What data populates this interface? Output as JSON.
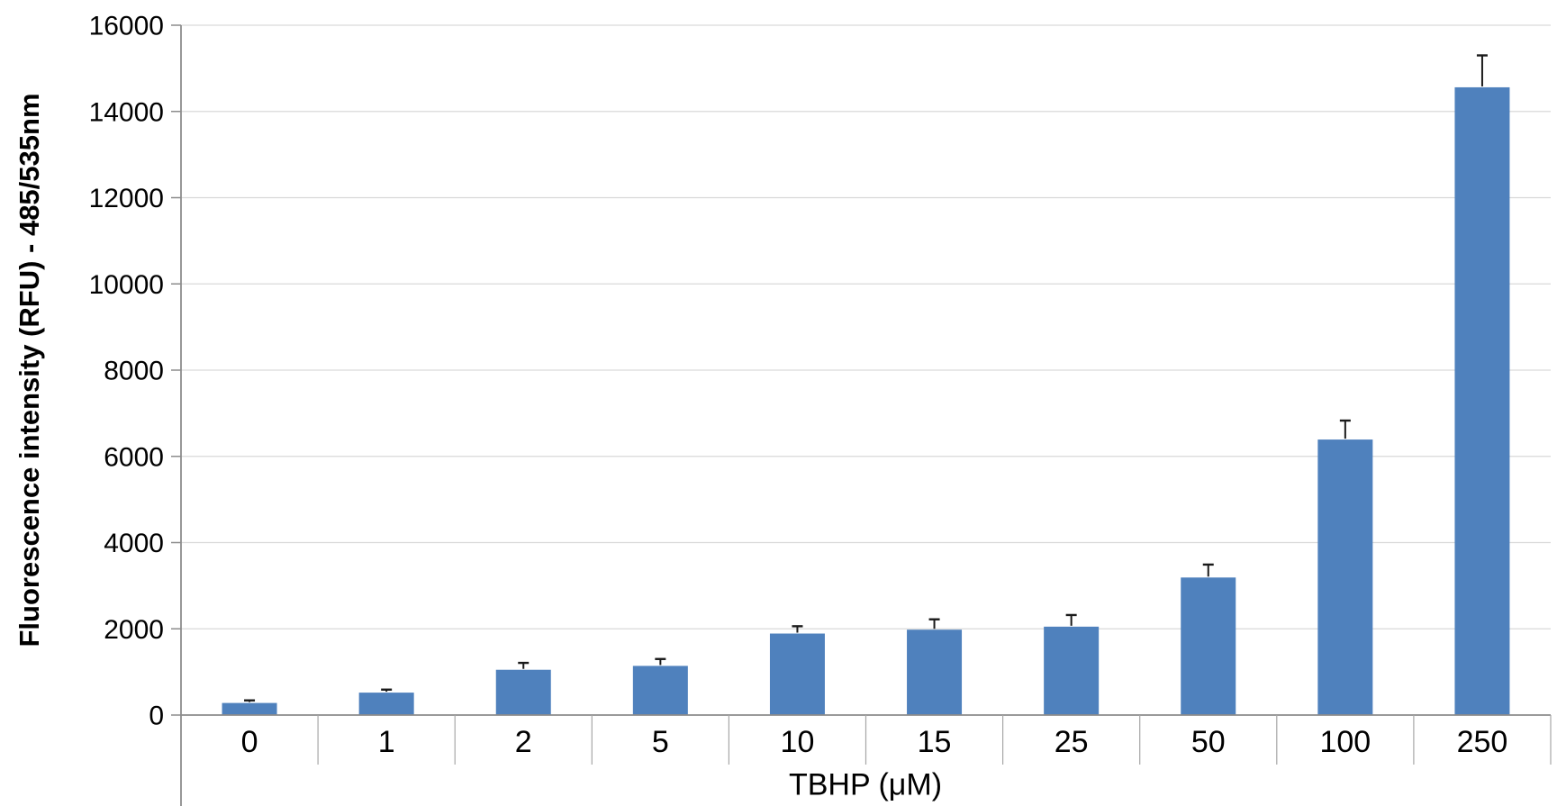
{
  "chart_data": {
    "type": "bar",
    "title": "",
    "xlabel": "TBHP (μM)",
    "ylabel": "Fluorescence intensity (RFU) - 485/535nm",
    "categories": [
      "0",
      "1",
      "2",
      "5",
      "10",
      "15",
      "25",
      "50",
      "100",
      "250"
    ],
    "values": [
      280,
      520,
      1050,
      1140,
      1890,
      1980,
      2050,
      3190,
      6390,
      14560
    ],
    "error_upper": [
      60,
      70,
      160,
      160,
      170,
      240,
      270,
      300,
      440,
      740
    ],
    "ylim": [
      0,
      16000
    ],
    "ytick_interval": 2000,
    "ytick_labels": [
      "0",
      "2000",
      "4000",
      "6000",
      "8000",
      "10000",
      "12000",
      "14000",
      "16000"
    ],
    "grid": true,
    "legend_position": "none",
    "colors": {
      "bar": "#4F81BD",
      "gridline": "#D9D9D9",
      "axis": "#8C8C8C",
      "category_separator": "#A6A6A6",
      "error_bar": "#1A1A1A",
      "text": "#000000",
      "background": "#FFFFFF"
    }
  }
}
